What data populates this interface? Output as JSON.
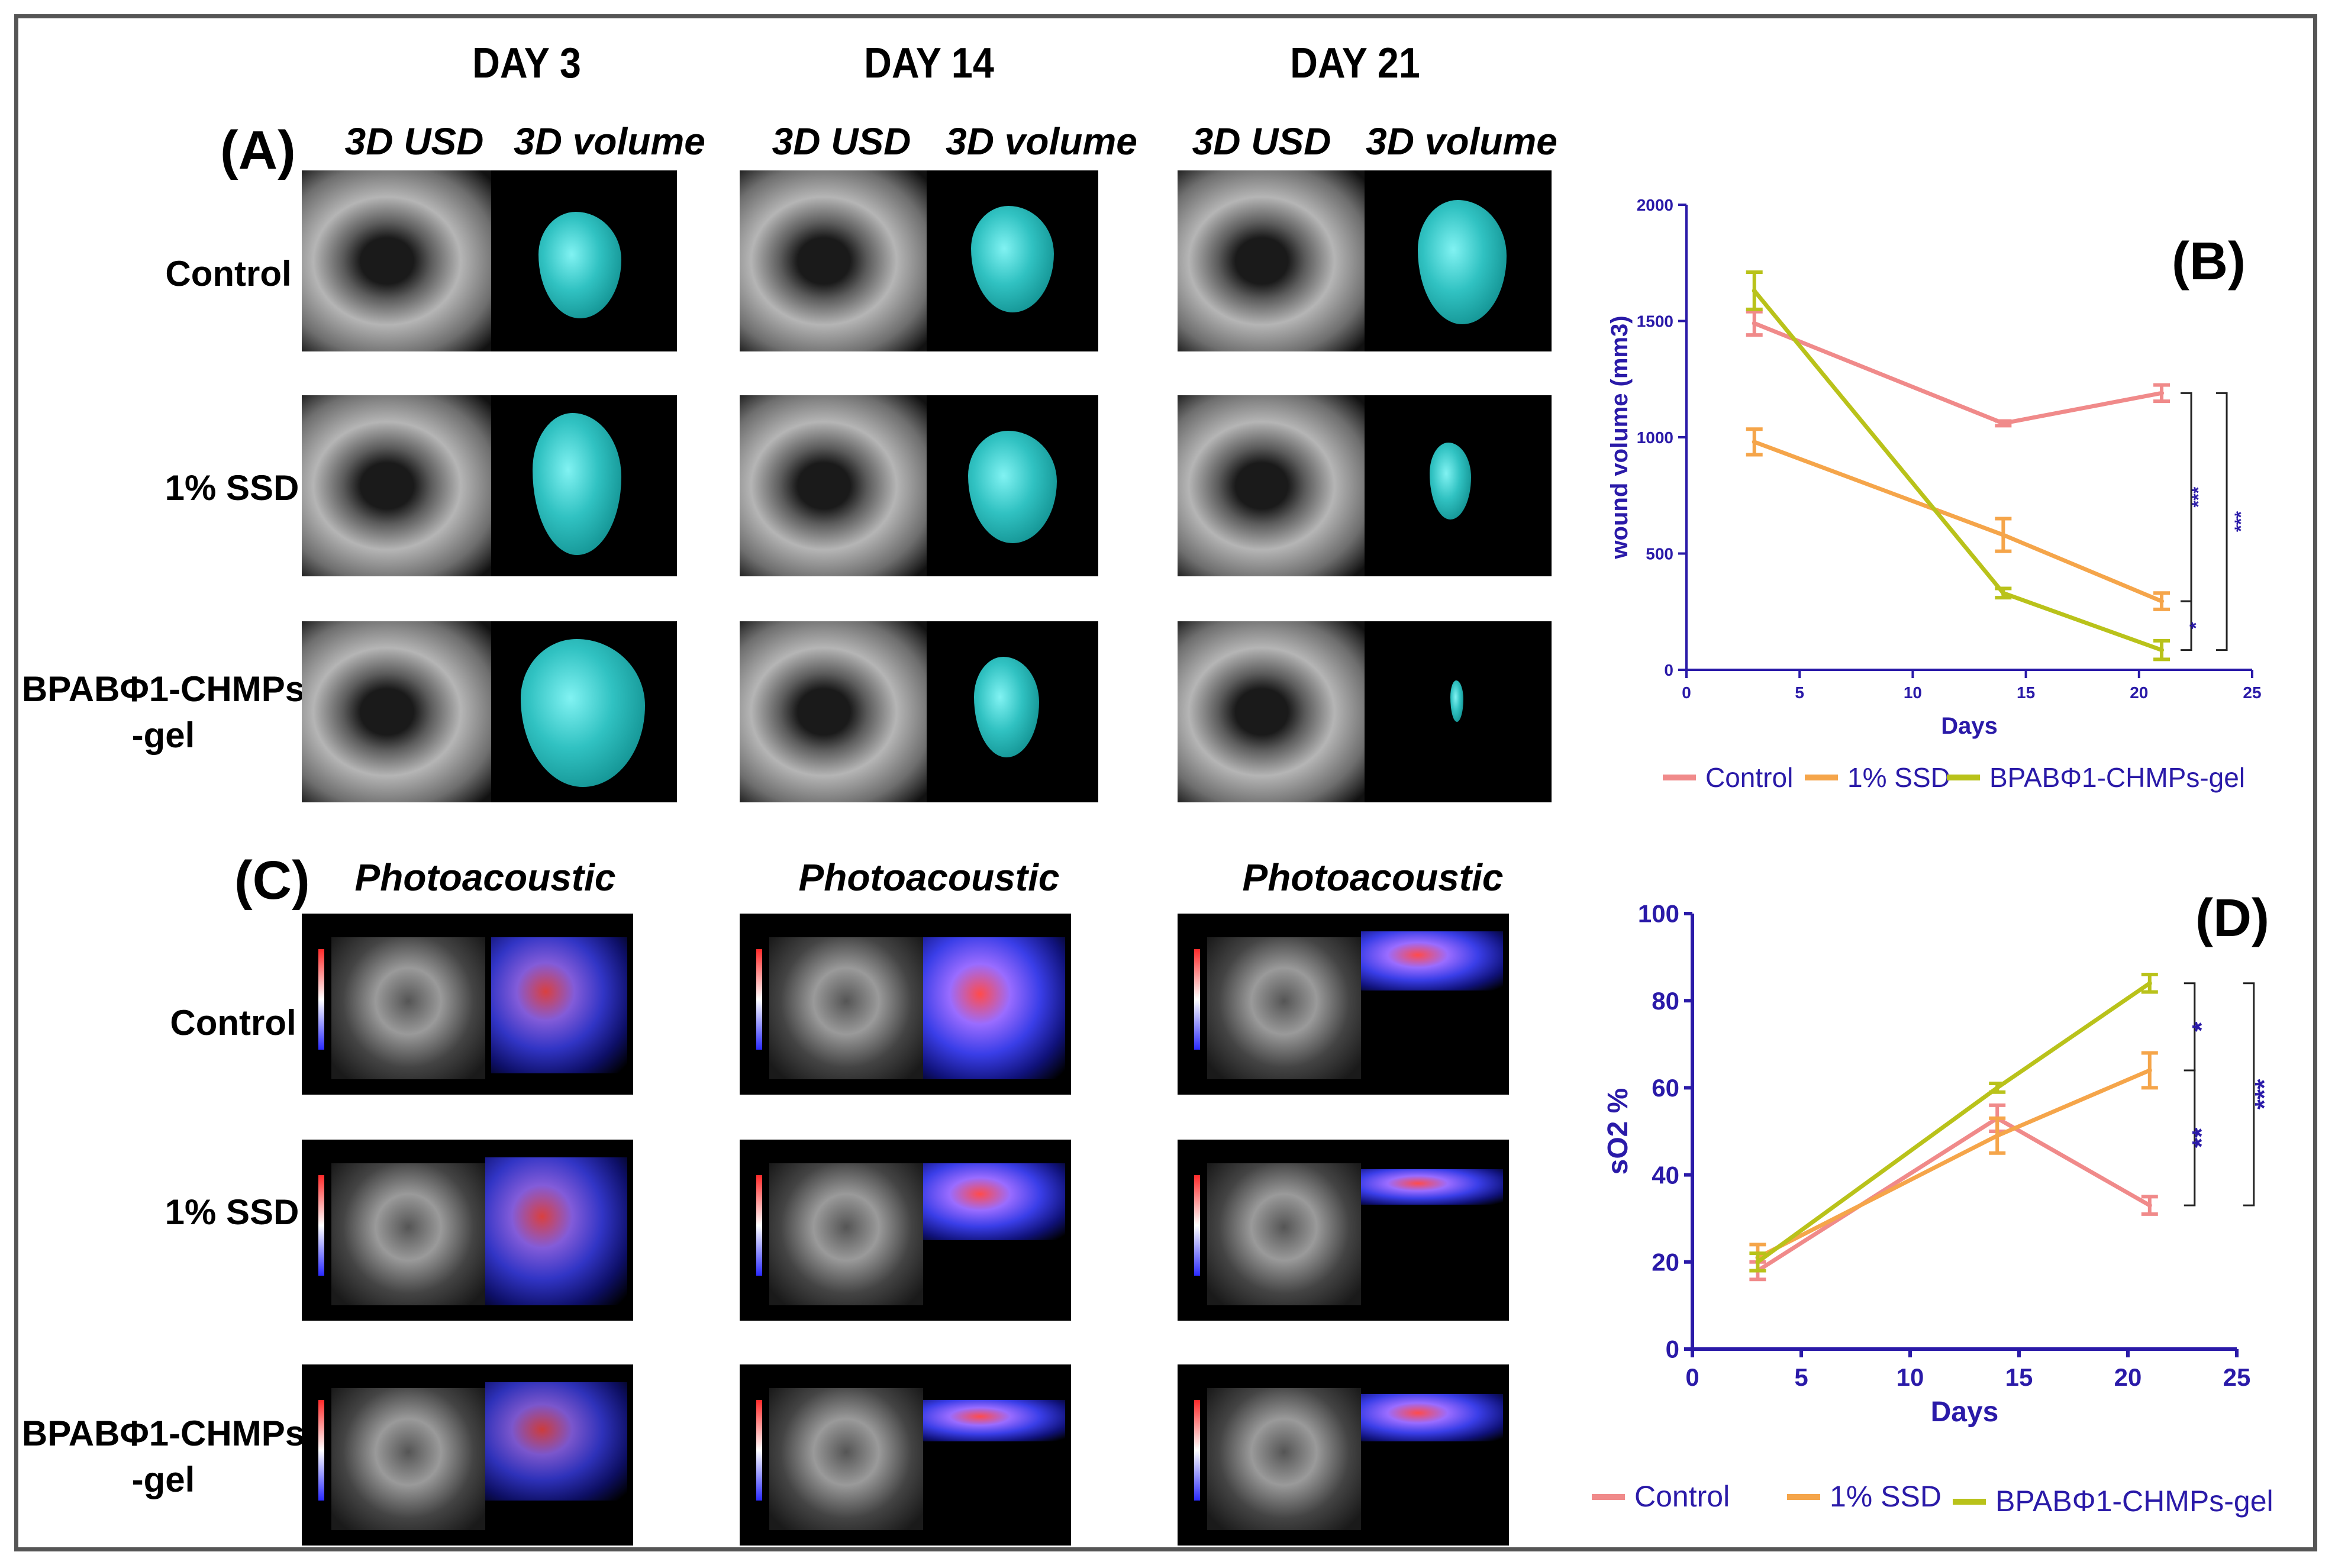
{
  "figure": {
    "day_headers": [
      "DAY 3",
      "DAY 14",
      "DAY 21"
    ],
    "panel_a_label": "(A)",
    "panel_b_label": "(B)",
    "panel_c_label": "(C)",
    "panel_d_label": "(D)",
    "sub_usd": "3D USD",
    "sub_volume": "3D volume",
    "sub_photo": "Photoacoustic",
    "row_labels": {
      "control": "Control",
      "ssd": "1% SSD",
      "bpab_line1": "BPABΦ1-CHMPs",
      "bpab_line2": "-gel"
    }
  },
  "colors": {
    "control": "#f08a8a",
    "ssd": "#f5a54a",
    "bpab": "#b9c21a",
    "axis": "#2a1aa8"
  },
  "chart_data": [
    {
      "type": "line",
      "panel": "(B)",
      "xlabel": "Days",
      "ylabel": "wound volume (mm3)",
      "xlim": [
        0,
        25
      ],
      "ylim": [
        0,
        2000
      ],
      "xticks": [
        "0",
        "5",
        "10",
        "15",
        "20",
        "25"
      ],
      "yticks": [
        "0",
        "500",
        "1000",
        "1500",
        "2000"
      ],
      "x": [
        3,
        14,
        21
      ],
      "series": [
        {
          "name": "Control",
          "values": [
            1490,
            1060,
            1190
          ],
          "err": [
            50,
            10,
            35
          ]
        },
        {
          "name": "1% SSD",
          "values": [
            980,
            580,
            295
          ],
          "err": [
            55,
            70,
            35
          ]
        },
        {
          "name": "BPABΦ1-CHMPs-gel",
          "values": [
            1630,
            330,
            85
          ],
          "err": [
            80,
            20,
            40
          ]
        }
      ],
      "significance": [
        "***",
        "***",
        "*"
      ]
    },
    {
      "type": "line",
      "panel": "(D)",
      "xlabel": "Days",
      "ylabel": "sO2 %",
      "xlim": [
        0,
        25
      ],
      "ylim": [
        0,
        100
      ],
      "xticks": [
        "0",
        "5",
        "10",
        "15",
        "20",
        "25"
      ],
      "yticks": [
        "0",
        "20",
        "40",
        "60",
        "80",
        "100"
      ],
      "x": [
        3,
        14,
        21
      ],
      "series": [
        {
          "name": "Control",
          "values": [
            18,
            53,
            33
          ],
          "err": [
            2,
            3,
            2
          ]
        },
        {
          "name": "1% SSD",
          "values": [
            21,
            49,
            64
          ],
          "err": [
            3,
            4,
            4
          ]
        },
        {
          "name": "BPABΦ1-CHMPs-gel",
          "values": [
            20,
            60,
            84
          ],
          "err": [
            2,
            1,
            2
          ]
        }
      ],
      "significance": [
        "*",
        "***",
        "**"
      ]
    }
  ]
}
